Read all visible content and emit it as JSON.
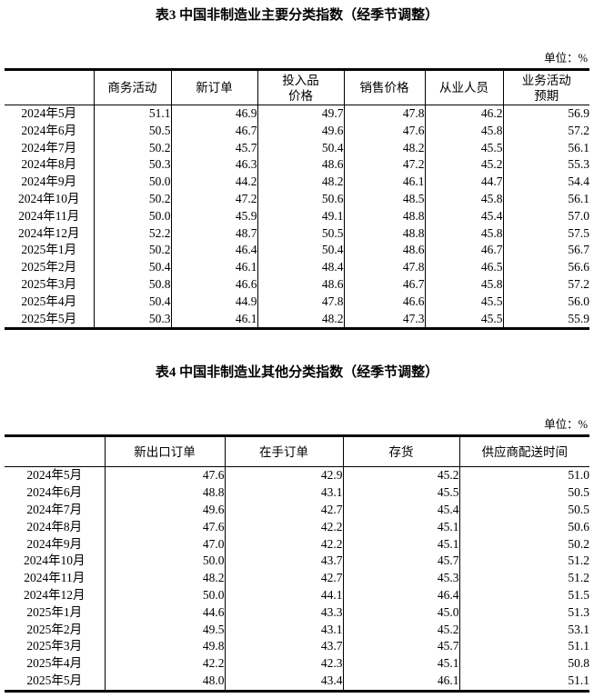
{
  "colors": {
    "text": "#000000",
    "background": "#ffffff",
    "border": "#000000"
  },
  "table3": {
    "title": "表3 中国非制造业主要分类指数（经季节调整）",
    "unit_label": "单位：%",
    "columns": [
      "商务活动",
      "新订单",
      "投入品\n价格",
      "销售价格",
      "从业人员",
      "业务活动\n预期"
    ],
    "rows": [
      {
        "month": "2024年5月",
        "values": [
          "51.1",
          "46.9",
          "49.7",
          "47.8",
          "46.2",
          "56.9"
        ]
      },
      {
        "month": "2024年6月",
        "values": [
          "50.5",
          "46.7",
          "49.6",
          "47.6",
          "45.8",
          "57.2"
        ]
      },
      {
        "month": "2024年7月",
        "values": [
          "50.2",
          "45.7",
          "50.4",
          "48.2",
          "45.5",
          "56.1"
        ]
      },
      {
        "month": "2024年8月",
        "values": [
          "50.3",
          "46.3",
          "48.6",
          "47.2",
          "45.2",
          "55.3"
        ]
      },
      {
        "month": "2024年9月",
        "values": [
          "50.0",
          "44.2",
          "48.2",
          "46.1",
          "44.7",
          "54.4"
        ]
      },
      {
        "month": "2024年10月",
        "values": [
          "50.2",
          "47.2",
          "50.6",
          "48.5",
          "45.8",
          "56.1"
        ]
      },
      {
        "month": "2024年11月",
        "values": [
          "50.0",
          "45.9",
          "49.1",
          "48.8",
          "45.4",
          "57.0"
        ]
      },
      {
        "month": "2024年12月",
        "values": [
          "52.2",
          "48.7",
          "50.5",
          "48.8",
          "45.8",
          "57.5"
        ]
      },
      {
        "month": "2025年1月",
        "values": [
          "50.2",
          "46.4",
          "50.4",
          "48.6",
          "46.7",
          "56.7"
        ]
      },
      {
        "month": "2025年2月",
        "values": [
          "50.4",
          "46.1",
          "48.4",
          "47.8",
          "46.5",
          "56.6"
        ]
      },
      {
        "month": "2025年3月",
        "values": [
          "50.8",
          "46.6",
          "48.6",
          "46.7",
          "45.8",
          "57.2"
        ]
      },
      {
        "month": "2025年4月",
        "values": [
          "50.4",
          "44.9",
          "47.8",
          "46.6",
          "45.5",
          "56.0"
        ]
      },
      {
        "month": "2025年5月",
        "values": [
          "50.3",
          "46.1",
          "48.2",
          "47.3",
          "45.5",
          "55.9"
        ]
      }
    ]
  },
  "table4": {
    "title": "表4 中国非制造业其他分类指数（经季节调整）",
    "unit_label": "单位：%",
    "columns": [
      "新出口订单",
      "在手订单",
      "存货",
      "供应商配送时间"
    ],
    "rows": [
      {
        "month": "2024年5月",
        "values": [
          "47.6",
          "42.9",
          "45.2",
          "51.0"
        ]
      },
      {
        "month": "2024年6月",
        "values": [
          "48.8",
          "43.1",
          "45.5",
          "50.5"
        ]
      },
      {
        "month": "2024年7月",
        "values": [
          "49.6",
          "42.7",
          "45.4",
          "50.5"
        ]
      },
      {
        "month": "2024年8月",
        "values": [
          "47.6",
          "42.2",
          "45.1",
          "50.6"
        ]
      },
      {
        "month": "2024年9月",
        "values": [
          "47.0",
          "42.2",
          "45.1",
          "50.2"
        ]
      },
      {
        "month": "2024年10月",
        "values": [
          "50.0",
          "43.7",
          "45.7",
          "51.2"
        ]
      },
      {
        "month": "2024年11月",
        "values": [
          "48.2",
          "42.7",
          "45.3",
          "51.2"
        ]
      },
      {
        "month": "2024年12月",
        "values": [
          "50.0",
          "44.1",
          "46.4",
          "51.5"
        ]
      },
      {
        "month": "2025年1月",
        "values": [
          "44.6",
          "43.3",
          "45.0",
          "51.3"
        ]
      },
      {
        "month": "2025年2月",
        "values": [
          "49.5",
          "43.1",
          "45.2",
          "53.1"
        ]
      },
      {
        "month": "2025年3月",
        "values": [
          "49.8",
          "43.7",
          "45.7",
          "51.1"
        ]
      },
      {
        "month": "2025年4月",
        "values": [
          "42.2",
          "42.3",
          "45.1",
          "50.8"
        ]
      },
      {
        "month": "2025年5月",
        "values": [
          "48.0",
          "43.4",
          "46.1",
          "51.1"
        ]
      }
    ]
  }
}
